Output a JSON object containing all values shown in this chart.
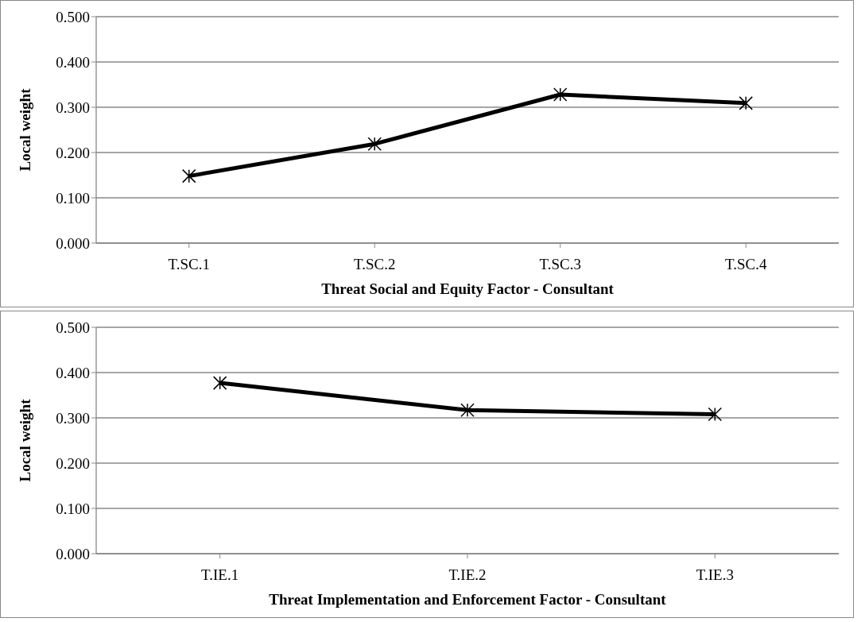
{
  "chart_data": [
    {
      "type": "line",
      "xlabel": "Threat Social and Equity Factor - Consultant",
      "ylabel": "Local weight",
      "categories": [
        "T.SC.1",
        "T.SC.2",
        "T.SC.3",
        "T.SC.4"
      ],
      "series": [
        {
          "color": "#000000",
          "values": [
            0.148,
            0.219,
            0.328,
            0.309
          ]
        }
      ],
      "ylim": [
        0,
        0.5
      ],
      "yticks": [
        {
          "value": 0,
          "label": "0.000"
        },
        {
          "value": 0.1,
          "label": "0.100"
        },
        {
          "value": 0.2,
          "label": "0.200"
        },
        {
          "value": 0.3,
          "label": "0.300"
        },
        {
          "value": 0.4,
          "label": "0.400"
        },
        {
          "value": 0.5,
          "label": "0.500"
        }
      ],
      "grid": "y",
      "marker": "cross",
      "line_style": "solid"
    },
    {
      "type": "line",
      "xlabel": "Threat Implementation and Enforcement Factor - Consultant",
      "ylabel": "Local weight",
      "categories": [
        "T.IE.1",
        "T.IE.2",
        "T.IE.3"
      ],
      "series": [
        {
          "color": "#000000",
          "values": [
            0.377,
            0.317,
            0.308
          ]
        }
      ],
      "ylim": [
        0,
        0.5
      ],
      "yticks": [
        {
          "value": 0,
          "label": "0.000"
        },
        {
          "value": 0.1,
          "label": "0.100"
        },
        {
          "value": 0.2,
          "label": "0.200"
        },
        {
          "value": 0.3,
          "label": "0.300"
        },
        {
          "value": 0.4,
          "label": "0.400"
        },
        {
          "value": 0.5,
          "label": "0.500"
        }
      ],
      "grid": "y",
      "marker": "cross",
      "line_style": "solid"
    }
  ]
}
